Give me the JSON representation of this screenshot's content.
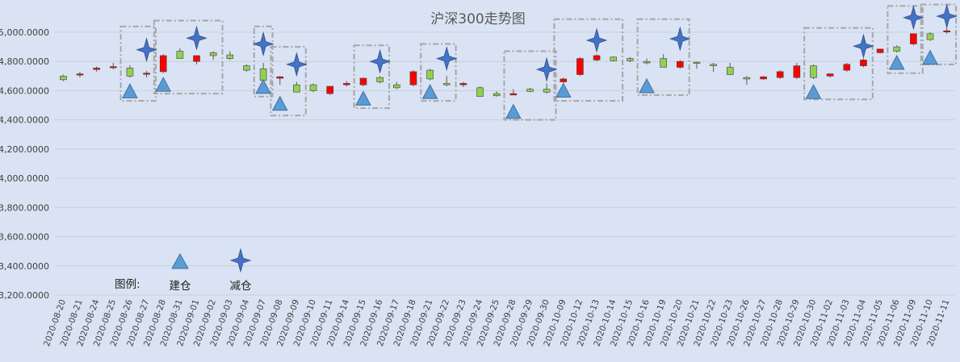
{
  "chart_data": {
    "type": "candlestick",
    "title": "沪深300走势图",
    "ylim": [
      3200,
      5100
    ],
    "yticks": [
      3200,
      3400,
      3600,
      3800,
      4000,
      4200,
      4400,
      4600,
      4800,
      5000
    ],
    "ytick_labels": [
      "3,200.0000",
      "3,400.0000",
      "3,600.0000",
      "3,800.0000",
      "4,000.0000",
      "4,200.0000",
      "4,400.0000",
      "4,600.0000",
      "4,800.0000",
      "5,000.0000"
    ],
    "grid": true,
    "up_color": "#ff0000",
    "down_color": "#92d050",
    "marker_color": "#5b9bd5",
    "box_color": "#a6a6a6",
    "categories": [
      "2020-08-20",
      "2020-08-21",
      "2020-08-24",
      "2020-08-25",
      "2020-08-26",
      "2020-08-27",
      "2020-08-28",
      "2020-08-31",
      "2020-09-01",
      "2020-09-02",
      "2020-09-03",
      "2020-09-04",
      "2020-09-07",
      "2020-09-08",
      "2020-09-09",
      "2020-09-10",
      "2020-09-11",
      "2020-09-14",
      "2020-09-15",
      "2020-09-16",
      "2020-09-17",
      "2020-09-18",
      "2020-09-21",
      "2020-09-22",
      "2020-09-23",
      "2020-09-24",
      "2020-09-25",
      "2020-09-28",
      "2020-09-29",
      "2020-09-30",
      "2020-10-09",
      "2020-10-12",
      "2020-10-13",
      "2020-10-14",
      "2020-10-15",
      "2020-10-16",
      "2020-10-19",
      "2020-10-20",
      "2020-10-21",
      "2020-10-22",
      "2020-10-23",
      "2020-10-26",
      "2020-10-27",
      "2020-10-28",
      "2020-10-29",
      "2020-10-30",
      "2020-11-02",
      "2020-11-03",
      "2020-11-04",
      "2020-11-05",
      "2020-11-06",
      "2020-11-09",
      "2020-11-10",
      "2020-11-11"
    ],
    "ohlc": [
      [
        4700,
        4710,
        4665,
        4675
      ],
      [
        4710,
        4730,
        4690,
        4715
      ],
      [
        4745,
        4765,
        4730,
        4755
      ],
      [
        4760,
        4790,
        4745,
        4765
      ],
      [
        4755,
        4775,
        4690,
        4700
      ],
      [
        4715,
        4735,
        4690,
        4720
      ],
      [
        4730,
        4850,
        4720,
        4840
      ],
      [
        4870,
        4890,
        4820,
        4820
      ],
      [
        4800,
        4840,
        4780,
        4840
      ],
      [
        4860,
        4870,
        4810,
        4840
      ],
      [
        4845,
        4870,
        4810,
        4820
      ],
      [
        4770,
        4780,
        4730,
        4740
      ],
      [
        4750,
        4790,
        4660,
        4670
      ],
      [
        4685,
        4700,
        4640,
        4695
      ],
      [
        4640,
        4660,
        4590,
        4590
      ],
      [
        4640,
        4650,
        4590,
        4600
      ],
      [
        4580,
        4630,
        4570,
        4630
      ],
      [
        4640,
        4665,
        4630,
        4650
      ],
      [
        4640,
        4690,
        4630,
        4685
      ],
      [
        4690,
        4700,
        4650,
        4660
      ],
      [
        4640,
        4660,
        4610,
        4620
      ],
      [
        4640,
        4740,
        4630,
        4730
      ],
      [
        4740,
        4750,
        4670,
        4680
      ],
      [
        4650,
        4700,
        4630,
        4640
      ],
      [
        4640,
        4660,
        4625,
        4650
      ],
      [
        4620,
        4630,
        4560,
        4560
      ],
      [
        4580,
        4595,
        4560,
        4565
      ],
      [
        4570,
        4610,
        4570,
        4580
      ],
      [
        4610,
        4620,
        4590,
        4595
      ],
      [
        4610,
        4650,
        4580,
        4590
      ],
      [
        4660,
        4690,
        4655,
        4680
      ],
      [
        4710,
        4830,
        4700,
        4820
      ],
      [
        4810,
        4850,
        4800,
        4840
      ],
      [
        4830,
        4835,
        4800,
        4805
      ],
      [
        4820,
        4830,
        4795,
        4805
      ],
      [
        4800,
        4820,
        4780,
        4790
      ],
      [
        4820,
        4850,
        4760,
        4760
      ],
      [
        4760,
        4810,
        4750,
        4800
      ],
      [
        4795,
        4800,
        4750,
        4790
      ],
      [
        4780,
        4790,
        4730,
        4770
      ],
      [
        4760,
        4790,
        4710,
        4710
      ],
      [
        4690,
        4700,
        4640,
        4680
      ],
      [
        4680,
        4700,
        4675,
        4695
      ],
      [
        4690,
        4740,
        4680,
        4730
      ],
      [
        4690,
        4790,
        4680,
        4770
      ],
      [
        4770,
        4780,
        4680,
        4690
      ],
      [
        4700,
        4720,
        4690,
        4715
      ],
      [
        4740,
        4790,
        4730,
        4780
      ],
      [
        4770,
        4820,
        4760,
        4810
      ],
      [
        4860,
        4885,
        4855,
        4885
      ],
      [
        4900,
        4910,
        4860,
        4870
      ],
      [
        4920,
        4990,
        4910,
        4990
      ],
      [
        4990,
        5000,
        4940,
        4950
      ],
      [
        5010,
        5030,
        4990,
        5010
      ]
    ],
    "build_markers": [
      {
        "x": "2020-08-26",
        "y": 4595
      },
      {
        "x": "2020-08-28",
        "y": 4640
      },
      {
        "x": "2020-09-07",
        "y": 4625
      },
      {
        "x": "2020-09-08",
        "y": 4510
      },
      {
        "x": "2020-09-15",
        "y": 4545
      },
      {
        "x": "2020-09-21",
        "y": 4590
      },
      {
        "x": "2020-09-28",
        "y": 4455
      },
      {
        "x": "2020-10-09",
        "y": 4600
      },
      {
        "x": "2020-10-16",
        "y": 4630
      },
      {
        "x": "2020-10-30",
        "y": 4590
      },
      {
        "x": "2020-11-06",
        "y": 4790
      },
      {
        "x": "2020-11-10",
        "y": 4825
      }
    ],
    "reduce_markers": [
      {
        "x": "2020-08-27",
        "y": 4880
      },
      {
        "x": "2020-09-01",
        "y": 4960
      },
      {
        "x": "2020-09-07",
        "y": 4920
      },
      {
        "x": "2020-09-09",
        "y": 4780
      },
      {
        "x": "2020-09-16",
        "y": 4800
      },
      {
        "x": "2020-09-22",
        "y": 4820
      },
      {
        "x": "2020-09-30",
        "y": 4745
      },
      {
        "x": "2020-10-13",
        "y": 4945
      },
      {
        "x": "2020-10-20",
        "y": 4955
      },
      {
        "x": "2020-11-04",
        "y": 4905
      },
      {
        "x": "2020-11-09",
        "y": 5100
      },
      {
        "x": "2020-11-11",
        "y": 5110
      }
    ],
    "groups": [
      {
        "from": "2020-08-26",
        "to": "2020-08-27",
        "y_top": 5040,
        "y_bottom": 4530
      },
      {
        "from": "2020-08-28",
        "to": "2020-09-02",
        "y_top": 5080,
        "y_bottom": 4580
      },
      {
        "from": "2020-09-07",
        "to": "2020-09-07",
        "y_top": 5040,
        "y_bottom": 4560
      },
      {
        "from": "2020-09-08",
        "to": "2020-09-09",
        "y_top": 4900,
        "y_bottom": 4430
      },
      {
        "from": "2020-09-15",
        "to": "2020-09-16",
        "y_top": 4910,
        "y_bottom": 4480
      },
      {
        "from": "2020-09-21",
        "to": "2020-09-22",
        "y_top": 4920,
        "y_bottom": 4530
      },
      {
        "from": "2020-09-28",
        "to": "2020-09-30",
        "y_top": 4870,
        "y_bottom": 4400
      },
      {
        "from": "2020-10-09",
        "to": "2020-10-14",
        "y_top": 5090,
        "y_bottom": 4530
      },
      {
        "from": "2020-10-16",
        "to": "2020-10-20",
        "y_top": 5090,
        "y_bottom": 4570
      },
      {
        "from": "2020-10-30",
        "to": "2020-11-04",
        "y_top": 5030,
        "y_bottom": 4540
      },
      {
        "from": "2020-11-06",
        "to": "2020-11-09",
        "y_top": 5180,
        "y_bottom": 4720
      },
      {
        "from": "2020-11-10",
        "to": "2020-11-11",
        "y_top": 5190,
        "y_bottom": 4780
      }
    ]
  },
  "legend": {
    "label": "图例:",
    "build_label": "建仓",
    "reduce_label": "减仓"
  }
}
